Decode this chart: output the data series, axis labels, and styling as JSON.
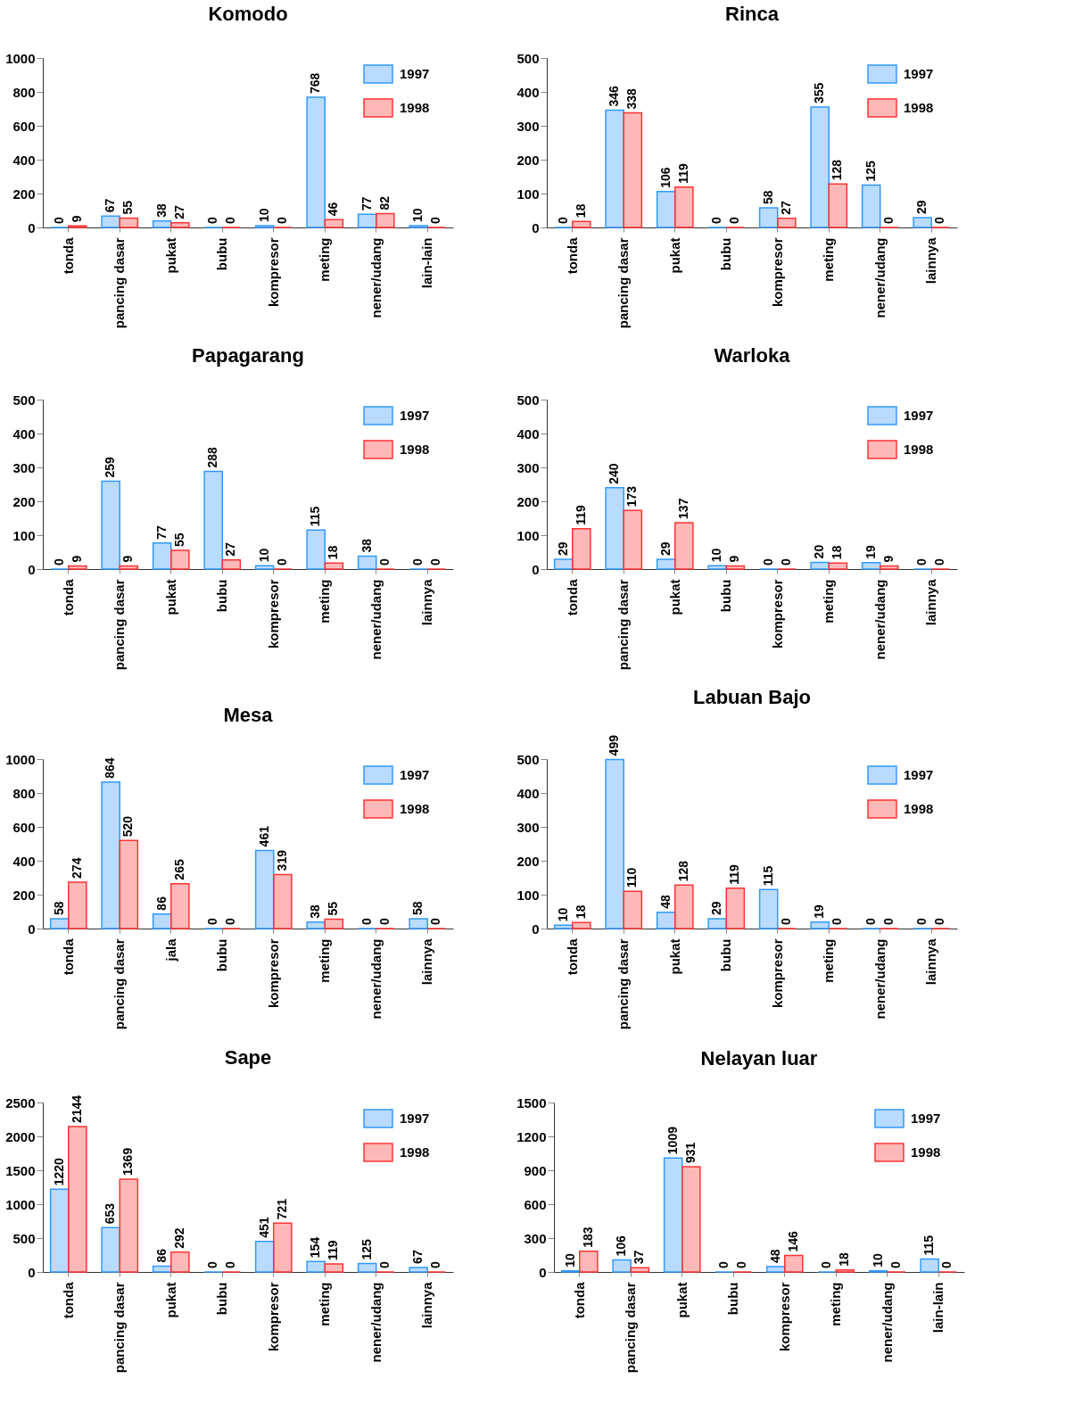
{
  "chart_data": [
    {
      "type": "bar",
      "title": "Komodo",
      "categories": [
        "tonda",
        "pancing dasar",
        "pukat",
        "bubu",
        "kompresor",
        "meting",
        "nener/udang",
        "lain-lain"
      ],
      "ylim": [
        0,
        1000
      ],
      "yticks": [
        0,
        200,
        400,
        600,
        800,
        1000
      ],
      "data_labels": true,
      "legend": "top right",
      "series": [
        {
          "name": "1997",
          "color": "#3399ff",
          "values": [
            0,
            67,
            38,
            0,
            10,
            768,
            77,
            10
          ]
        },
        {
          "name": "1998",
          "color": "#ff3333",
          "values": [
            9,
            55,
            27,
            0,
            0,
            46,
            82,
            0
          ]
        }
      ]
    },
    {
      "type": "bar",
      "title": "Rinca",
      "categories": [
        "tonda",
        "pancing dasar",
        "pukat",
        "bubu",
        "kompresor",
        "meting",
        "nener/udang",
        "lainnya"
      ],
      "ylim": [
        0,
        500
      ],
      "yticks": [
        0,
        100,
        200,
        300,
        400,
        500
      ],
      "data_labels": true,
      "legend": "top right",
      "series": [
        {
          "name": "1997",
          "color": "#3399ff",
          "values": [
            0,
            346,
            106,
            0,
            58,
            355,
            125,
            29
          ]
        },
        {
          "name": "1998",
          "color": "#ff3333",
          "values": [
            18,
            338,
            119,
            0,
            27,
            128,
            0,
            0
          ]
        }
      ]
    },
    {
      "type": "bar",
      "title": "Papagarang",
      "categories": [
        "tonda",
        "pancing dasar",
        "pukat",
        "bubu",
        "kompresor",
        "meting",
        "nener/udang",
        "lainnya"
      ],
      "ylim": [
        0,
        500
      ],
      "yticks": [
        0,
        100,
        200,
        300,
        400,
        500
      ],
      "data_labels": true,
      "legend": "top right",
      "series": [
        {
          "name": "1997",
          "color": "#3399ff",
          "values": [
            0,
            259,
            77,
            288,
            10,
            115,
            38,
            0
          ]
        },
        {
          "name": "1998",
          "color": "#ff3333",
          "values": [
            9,
            9,
            55,
            27,
            0,
            18,
            0,
            0
          ]
        }
      ]
    },
    {
      "type": "bar",
      "title": "Warloka",
      "categories": [
        "tonda",
        "pancing dasar",
        "pukat",
        "bubu",
        "kompresor",
        "meting",
        "nener/udang",
        "lainnya"
      ],
      "ylim": [
        0,
        500
      ],
      "yticks": [
        0,
        100,
        200,
        300,
        400,
        500
      ],
      "data_labels": true,
      "legend": "top right",
      "series": [
        {
          "name": "1997",
          "color": "#3399ff",
          "values": [
            29,
            240,
            29,
            10,
            0,
            20,
            19,
            0
          ]
        },
        {
          "name": "1998",
          "color": "#ff3333",
          "values": [
            119,
            173,
            137,
            9,
            0,
            18,
            9,
            0
          ]
        }
      ]
    },
    {
      "type": "bar",
      "title": "Mesa",
      "categories": [
        "tonda",
        "pancing dasar",
        "jala",
        "bubu",
        "kompresor",
        "meting",
        "nener/udang",
        "lainnya"
      ],
      "ylim": [
        0,
        1000
      ],
      "yticks": [
        0,
        200,
        400,
        600,
        800,
        1000
      ],
      "data_labels": true,
      "legend": "top right",
      "series": [
        {
          "name": "1997",
          "color": "#3399ff",
          "values": [
            58,
            864,
            86,
            0,
            461,
            38,
            0,
            58
          ]
        },
        {
          "name": "1998",
          "color": "#ff3333",
          "values": [
            274,
            520,
            265,
            0,
            319,
            55,
            0,
            0
          ]
        }
      ]
    },
    {
      "type": "bar",
      "title": "Labuan Bajo",
      "categories": [
        "tonda",
        "pancing dasar",
        "pukat",
        "bubu",
        "kompresor",
        "meting",
        "nener/udang",
        "lainnya"
      ],
      "ylim": [
        0,
        500
      ],
      "yticks": [
        0,
        100,
        200,
        300,
        400,
        500
      ],
      "data_labels": true,
      "legend": "top right",
      "series": [
        {
          "name": "1997",
          "color": "#3399ff",
          "values": [
            10,
            499,
            48,
            29,
            115,
            19,
            0,
            0
          ]
        },
        {
          "name": "1998",
          "color": "#ff3333",
          "values": [
            18,
            110,
            128,
            119,
            0,
            0,
            0,
            0
          ]
        }
      ]
    },
    {
      "type": "bar",
      "title": "Sape",
      "categories": [
        "tonda",
        "pancing dasar",
        "pukat",
        "bubu",
        "kompresor",
        "meting",
        "nener/udang",
        "lainnya"
      ],
      "ylim": [
        0,
        2500
      ],
      "yticks": [
        0,
        500,
        1000,
        1500,
        2000,
        2500
      ],
      "data_labels": true,
      "legend": "top right",
      "series": [
        {
          "name": "1997",
          "color": "#3399ff",
          "values": [
            1220,
            653,
            86,
            0,
            451,
            154,
            125,
            67
          ]
        },
        {
          "name": "1998",
          "color": "#ff3333",
          "values": [
            2144,
            1369,
            292,
            0,
            721,
            119,
            0,
            0
          ]
        }
      ]
    },
    {
      "type": "bar",
      "title": "Nelayan luar",
      "categories": [
        "tonda",
        "pancing dasar",
        "pukat",
        "bubu",
        "kompresor",
        "meting",
        "nener/udang",
        "lain-lain"
      ],
      "ylim": [
        0,
        1500
      ],
      "yticks": [
        0,
        300,
        600,
        900,
        1200,
        1500
      ],
      "data_labels": true,
      "legend": "top right",
      "series": [
        {
          "name": "1997",
          "color": "#3399ff",
          "values": [
            10,
            106,
            1009,
            0,
            48,
            0,
            10,
            115
          ]
        },
        {
          "name": "1998",
          "color": "#ff3333",
          "values": [
            183,
            37,
            931,
            0,
            146,
            18,
            0,
            0
          ]
        }
      ]
    }
  ]
}
